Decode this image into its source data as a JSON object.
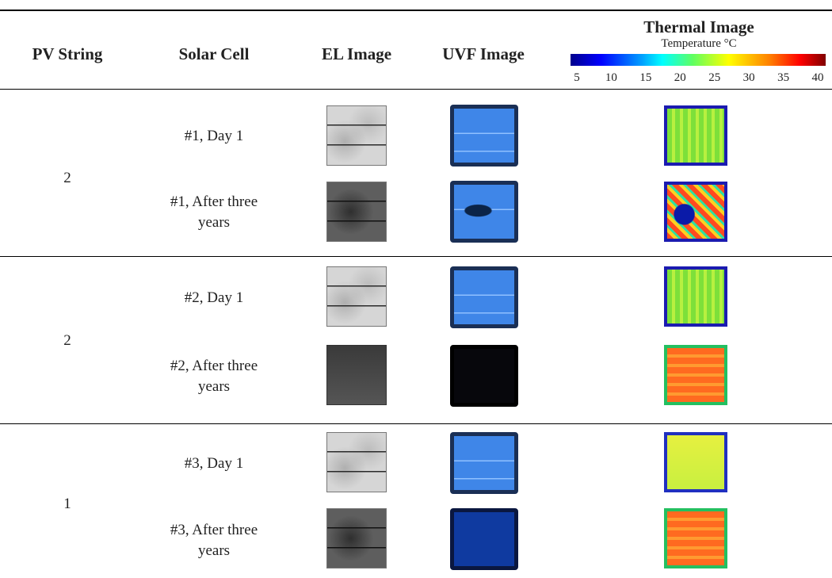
{
  "table": {
    "headers": [
      "PV String",
      "Solar Cell",
      "EL Image",
      "UVF Image",
      "Thermal Image"
    ],
    "thermal_scale": {
      "label": "Temperature °C",
      "ticks": [
        5,
        10,
        15,
        20,
        25,
        30,
        35,
        40
      ]
    },
    "groups": [
      {
        "pv_string": "2",
        "cells": [
          "#1, Day 1",
          "#1, After three years"
        ]
      },
      {
        "pv_string": "2",
        "cells": [
          "#2, Day 1",
          "#2, After three years"
        ]
      },
      {
        "pv_string": "1",
        "cells": [
          "#3, Day 1",
          "#3, After three years"
        ]
      }
    ]
  }
}
